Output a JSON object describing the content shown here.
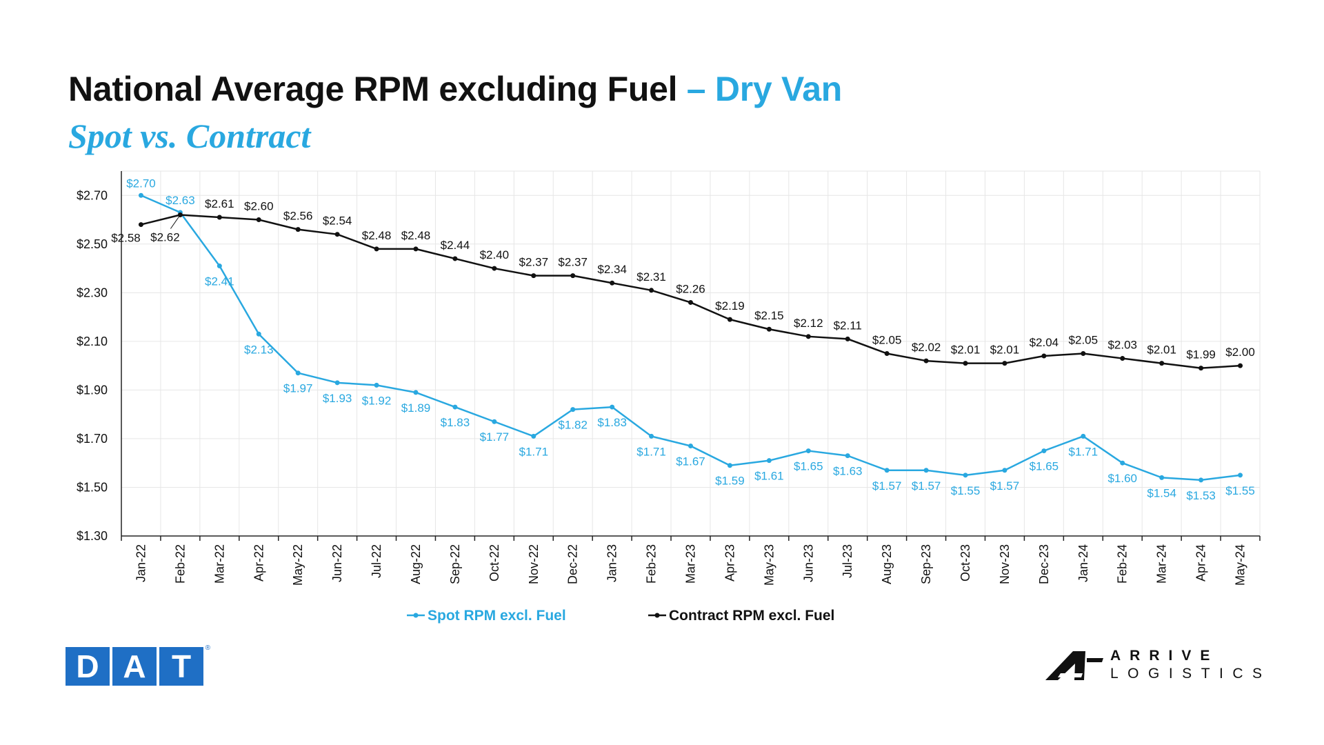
{
  "title": {
    "main": "National Average RPM excluding Fuel",
    "accent": "– Dry Van",
    "subtitle": "Spot vs. Contract"
  },
  "colors": {
    "spot": "#29a8e0",
    "contract": "#111111",
    "grid": "#e6e6e6",
    "dat_blue": "#1f6fc5"
  },
  "logos": {
    "dat": {
      "letters": [
        "D",
        "A",
        "T"
      ],
      "registered": "®"
    },
    "arrive": {
      "line1": "ARRIVE",
      "line2": "LOGISTICS"
    }
  },
  "chart_data": {
    "type": "line",
    "categories": [
      "Jan-22",
      "Feb-22",
      "Mar-22",
      "Apr-22",
      "May-22",
      "Jun-22",
      "Jul-22",
      "Aug-22",
      "Sep-22",
      "Oct-22",
      "Nov-22",
      "Dec-22",
      "Jan-23",
      "Feb-23",
      "Mar-23",
      "Apr-23",
      "May-23",
      "Jun-23",
      "Jul-23",
      "Aug-23",
      "Sep-23",
      "Oct-23",
      "Nov-23",
      "Dec-23",
      "Jan-24",
      "Feb-24",
      "Mar-24",
      "Apr-24",
      "May-24"
    ],
    "series": [
      {
        "name": "Spot RPM excl. Fuel",
        "color": "#29a8e0",
        "values": [
          2.7,
          2.63,
          2.41,
          2.13,
          1.97,
          1.93,
          1.92,
          1.89,
          1.83,
          1.77,
          1.71,
          1.82,
          1.83,
          1.71,
          1.67,
          1.59,
          1.61,
          1.65,
          1.63,
          1.57,
          1.57,
          1.55,
          1.57,
          1.65,
          1.71,
          1.6,
          1.54,
          1.53,
          1.55
        ],
        "labels": [
          "$2.70",
          "$2.63",
          "$2.41",
          "$2.13",
          "$1.97",
          "$1.93",
          "$1.92",
          "$1.89",
          "$1.83",
          "$1.77",
          "$1.71",
          "$1.82",
          "$1.83",
          "$1.71",
          "$1.67",
          "$1.59",
          "$1.61",
          "$1.65",
          "$1.63",
          "$1.57",
          "$1.57",
          "$1.55",
          "$1.57",
          "$1.65",
          "$1.71",
          "$1.60",
          "$1.54",
          "$1.53",
          "$1.55"
        ]
      },
      {
        "name": "Contract RPM excl. Fuel",
        "color": "#111111",
        "values": [
          2.58,
          2.62,
          2.61,
          2.6,
          2.56,
          2.54,
          2.48,
          2.48,
          2.44,
          2.4,
          2.37,
          2.37,
          2.34,
          2.31,
          2.26,
          2.19,
          2.15,
          2.12,
          2.11,
          2.05,
          2.02,
          2.01,
          2.01,
          2.04,
          2.05,
          2.03,
          2.01,
          1.99,
          2.0
        ],
        "labels": [
          "$2.58",
          "$2.62",
          "$2.61",
          "$2.60",
          "$2.56",
          "$2.54",
          "$2.48",
          "$2.48",
          "$2.44",
          "$2.40",
          "$2.37",
          "$2.37",
          "$2.34",
          "$2.31",
          "$2.26",
          "$2.19",
          "$2.15",
          "$2.12",
          "$2.11",
          "$2.05",
          "$2.02",
          "$2.01",
          "$2.01",
          "$2.04",
          "$2.05",
          "$2.03",
          "$2.01",
          "$1.99",
          "$2.00"
        ]
      }
    ],
    "ylim": [
      1.3,
      2.8
    ],
    "y_ticks": [
      1.3,
      1.5,
      1.7,
      1.9,
      2.1,
      2.3,
      2.5,
      2.7
    ],
    "y_tick_labels": [
      "$1.30",
      "$1.50",
      "$1.70",
      "$1.90",
      "$2.10",
      "$2.30",
      "$2.50",
      "$2.70"
    ],
    "xlabel": "",
    "ylabel": "",
    "grid": true,
    "legend": "bottom-center"
  }
}
